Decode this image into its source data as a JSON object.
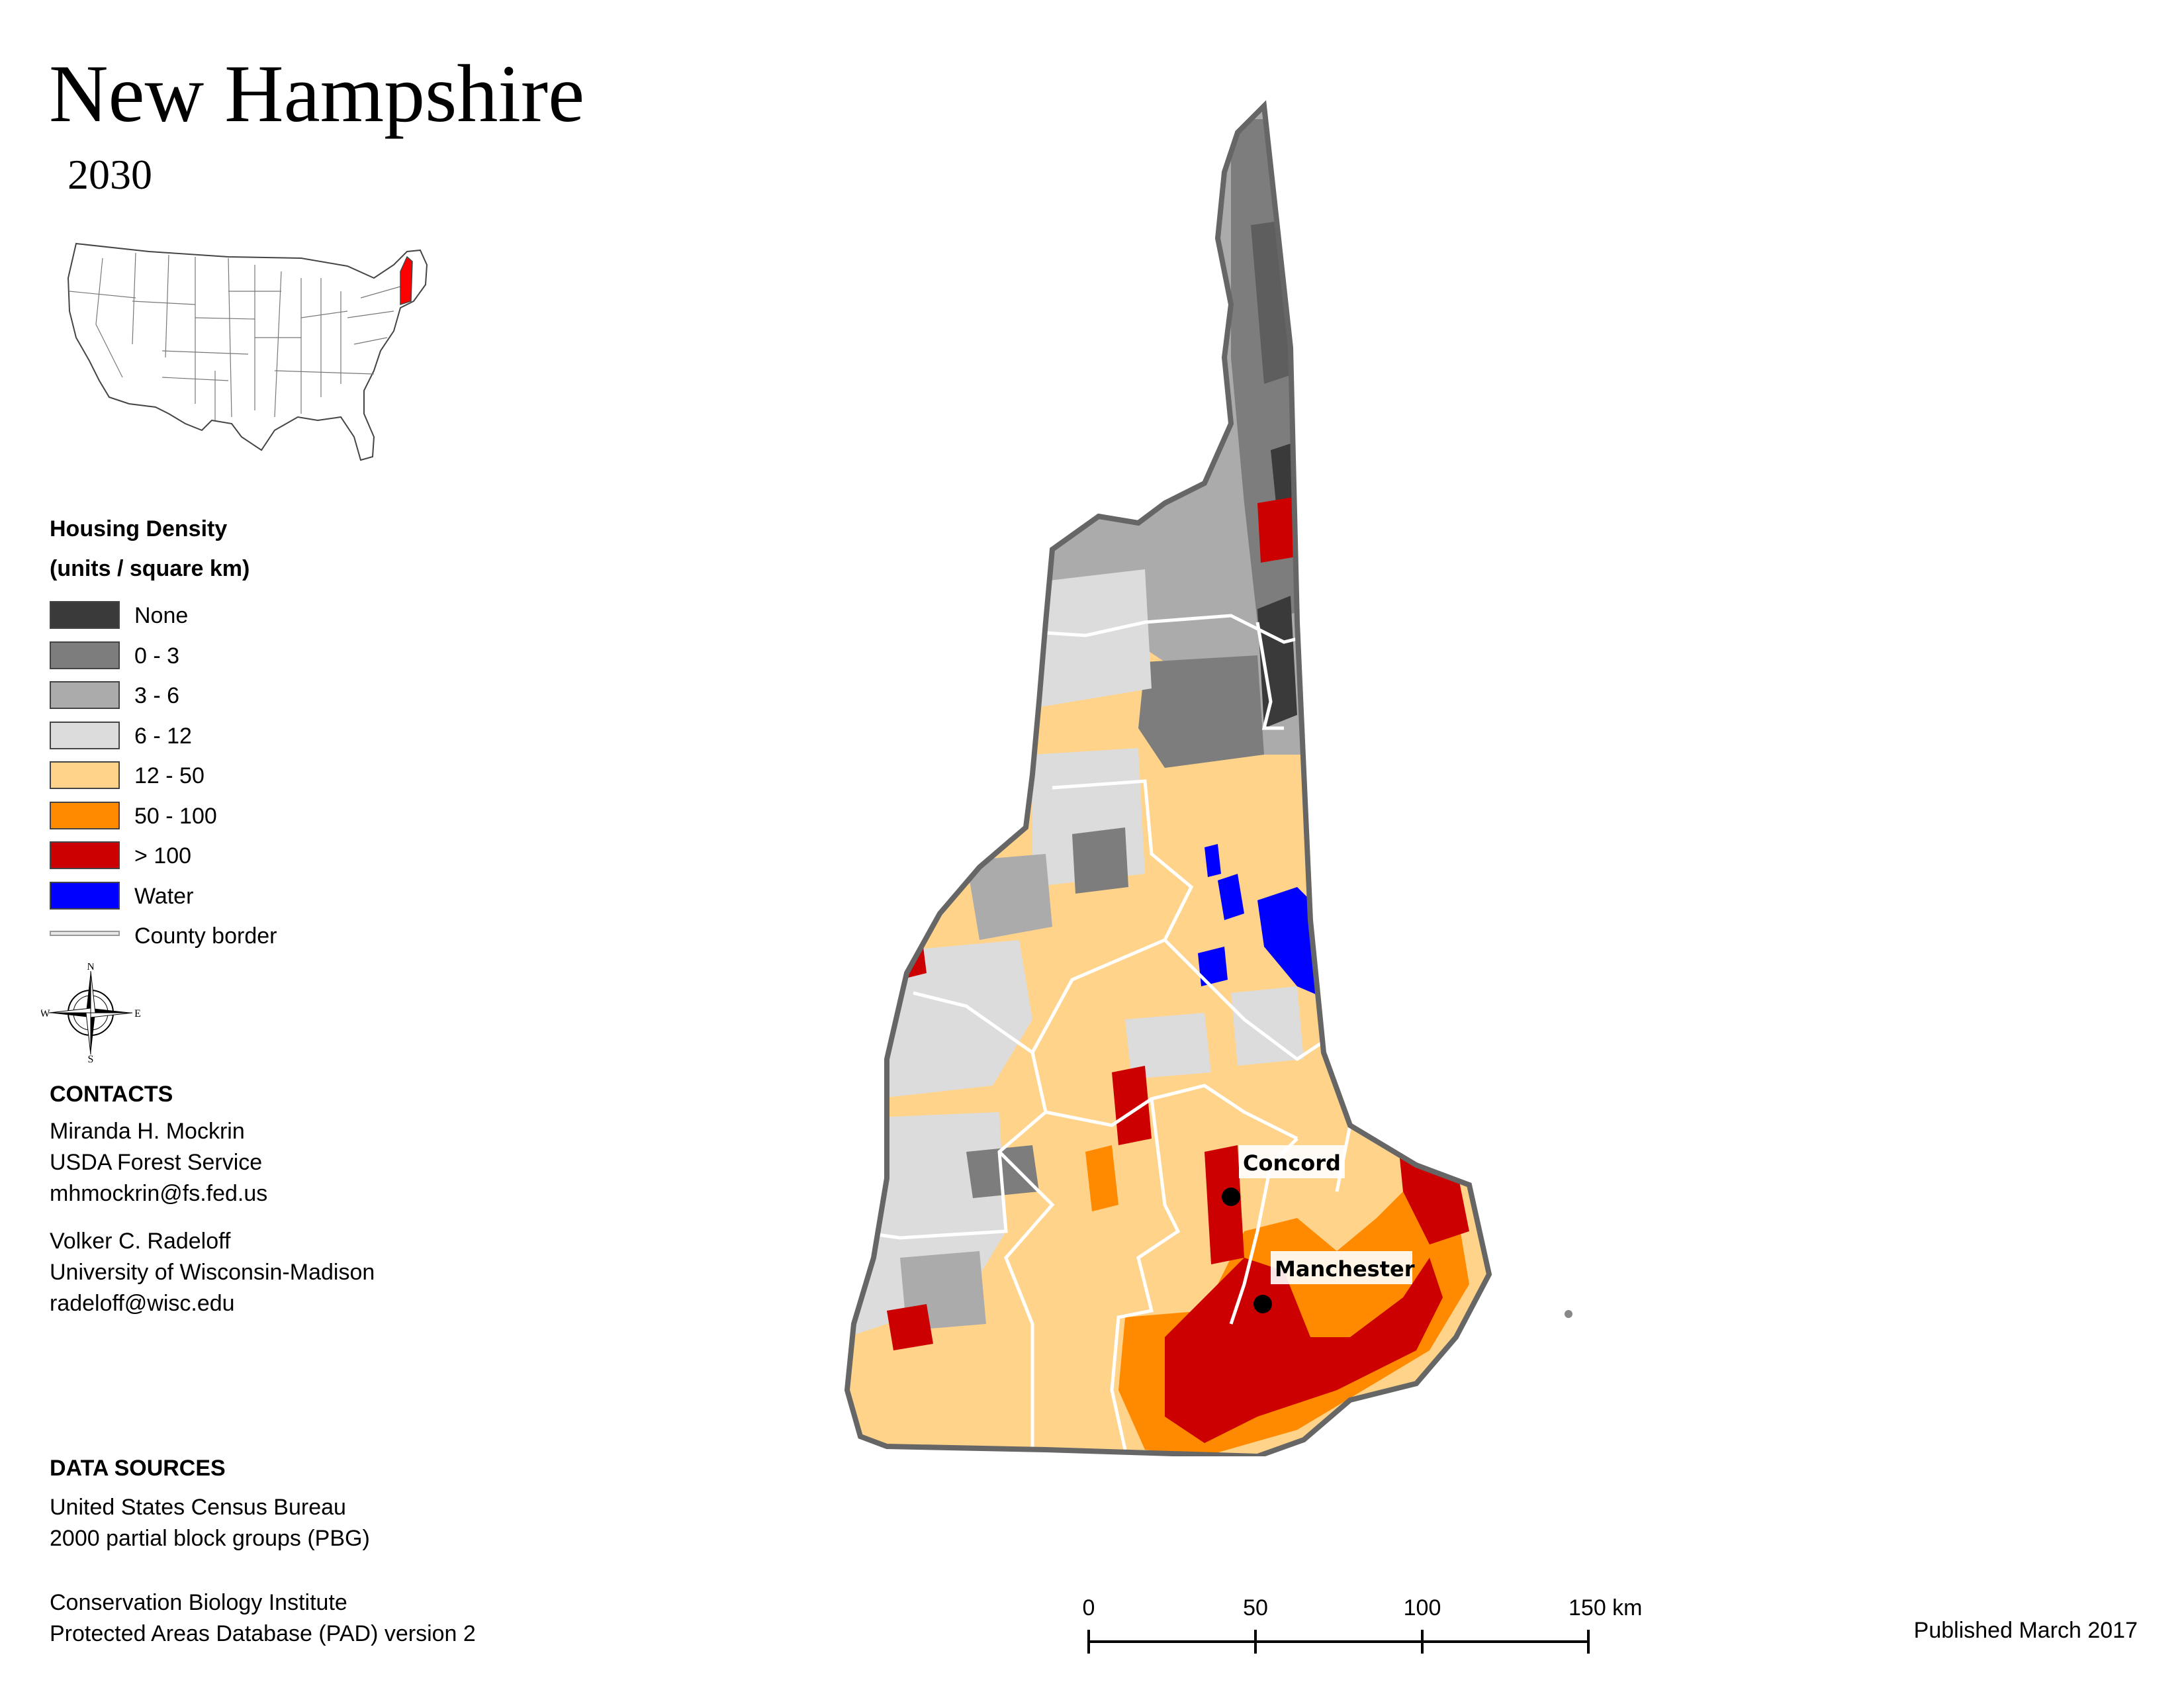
{
  "title": "New Hampshire",
  "subtitle": "2030",
  "legend": {
    "heading_line1": "Housing Density",
    "heading_line2": "(units / square km)",
    "items": [
      {
        "label": "None",
        "color": "#3a3a3a"
      },
      {
        "label": "0 - 3",
        "color": "#7d7d7d"
      },
      {
        "label": "3 - 6",
        "color": "#ababab"
      },
      {
        "label": "6 - 12",
        "color": "#dcdcdc"
      },
      {
        "label": "12 - 50",
        "color": "#ffd38a"
      },
      {
        "label": "50 - 100",
        "color": "#ff8a00"
      },
      {
        "label": "> 100",
        "color": "#cc0000"
      },
      {
        "label": "Water",
        "color": "#0000ff"
      }
    ],
    "county_border_label": "County border"
  },
  "compass": {
    "n": "N",
    "s": "S",
    "e": "E",
    "w": "W"
  },
  "contacts": {
    "heading": "CONTACTS",
    "people": [
      {
        "name": "Miranda H. Mockrin",
        "org": "USDA Forest Service",
        "email": "mhmockrin@fs.fed.us"
      },
      {
        "name": "Volker C. Radeloff",
        "org": "University of Wisconsin-Madison",
        "email": "radeloff@wisc.edu"
      }
    ]
  },
  "data_sources": {
    "heading": "DATA SOURCES",
    "lines1": [
      "United States Census Bureau",
      "2000 partial block groups (PBG)"
    ],
    "lines2": [
      "Conservation Biology Institute",
      "Protected Areas Database (PAD) version 2"
    ]
  },
  "cities": [
    {
      "name": "Concord"
    },
    {
      "name": "Manchester"
    }
  ],
  "scale": {
    "ticks": [
      "0",
      "50",
      "100",
      "150 km"
    ]
  },
  "published": "Published March 2017",
  "inset_highlight_color": "#ff0000"
}
